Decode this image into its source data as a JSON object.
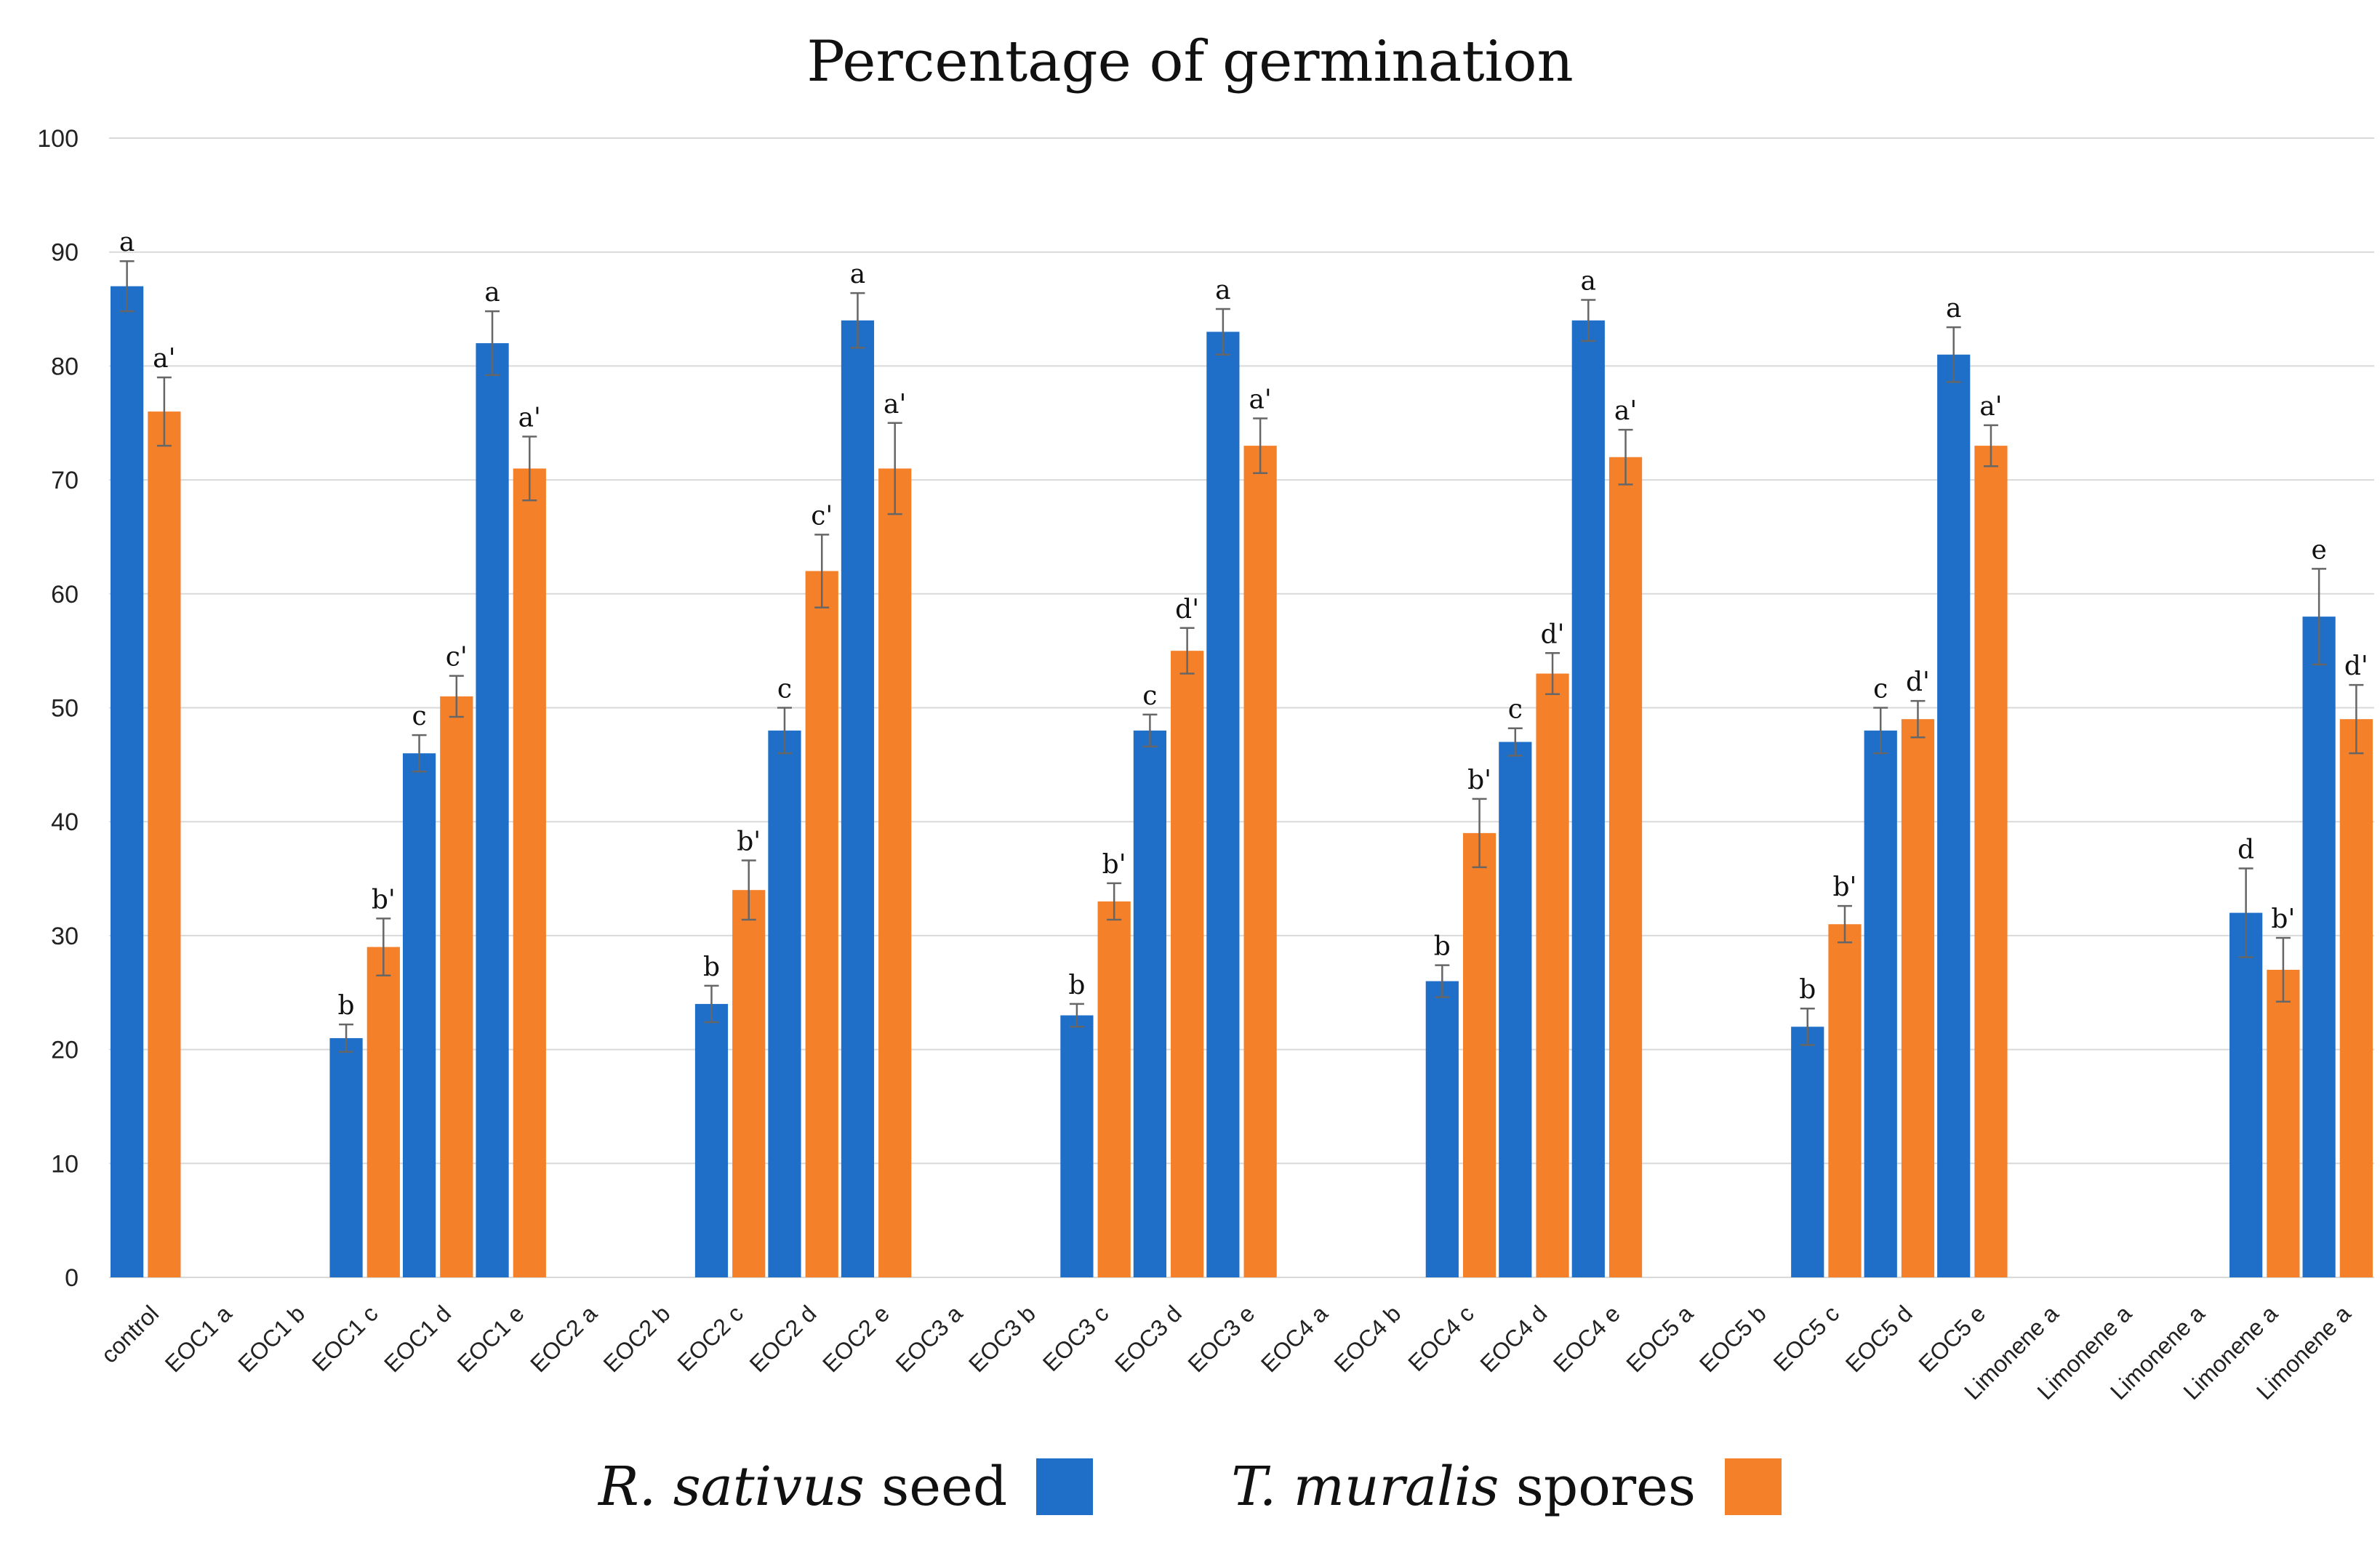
{
  "chart_data": {
    "type": "bar",
    "title": "Percentage of germination",
    "xlabel": "",
    "ylabel": "",
    "ylim": [
      0,
      100
    ],
    "yticks": [
      0,
      10,
      20,
      30,
      40,
      50,
      60,
      70,
      80,
      90,
      100
    ],
    "grid": true,
    "legend_position": "bottom",
    "categories": [
      "control",
      "EOC1 a",
      "EOC1 b",
      "EOC1 c",
      "EOC1 d",
      "EOC1 e",
      "EOC2 a",
      "EOC2 b",
      "EOC2 c",
      "EOC2 d",
      "EOC2 e",
      "EOC3 a",
      "EOC3 b",
      "EOC3 c",
      "EOC3 d",
      "EOC3 e",
      "EOC4 a",
      "EOC4 b",
      "EOC4 c",
      "EOC4 d",
      "EOC4 e",
      "EOC5 a",
      "EOC5 b",
      "EOC5 c",
      "EOC5 d",
      "EOC5 e",
      "Limonene a",
      "Limonene a",
      "Limonene a",
      "Limonene a",
      "Limonene a"
    ],
    "series": [
      {
        "name": "R. sativus seed",
        "name_italic": "R. sativus",
        "name_rest": " seed",
        "color": "#1f6fc9",
        "values": [
          87,
          null,
          null,
          21,
          46,
          82,
          null,
          null,
          24,
          48,
          84,
          null,
          null,
          23,
          48,
          83,
          null,
          null,
          26,
          47,
          84,
          null,
          null,
          22,
          48,
          81,
          null,
          null,
          null,
          32,
          58
        ],
        "errors": [
          2.2,
          null,
          null,
          1.2,
          1.6,
          2.8,
          null,
          null,
          1.6,
          2.0,
          2.4,
          null,
          null,
          1.0,
          1.4,
          2.0,
          null,
          null,
          1.4,
          1.2,
          1.8,
          null,
          null,
          1.6,
          2.0,
          2.4,
          null,
          null,
          null,
          3.9,
          4.2
        ],
        "labels": [
          "a",
          "",
          "",
          "b",
          "c",
          "a",
          "",
          "",
          "b",
          "c",
          "a",
          "",
          "",
          "b",
          "c",
          "a",
          "",
          "",
          "b",
          "c",
          "a",
          "",
          "",
          "b",
          "c",
          "a",
          "",
          "",
          "",
          "d",
          "e"
        ]
      },
      {
        "name": "T. muralis spores",
        "name_italic": "T. muralis",
        "name_rest": " spores",
        "color": "#f5802a",
        "values": [
          76,
          null,
          null,
          29,
          51,
          71,
          null,
          null,
          34,
          62,
          71,
          null,
          null,
          33,
          55,
          73,
          null,
          null,
          39,
          53,
          72,
          null,
          null,
          31,
          49,
          73,
          null,
          null,
          null,
          27,
          49
        ],
        "errors": [
          3.0,
          null,
          null,
          2.5,
          1.8,
          2.8,
          null,
          null,
          2.6,
          3.2,
          4.0,
          null,
          null,
          1.6,
          2.0,
          2.4,
          null,
          null,
          3.0,
          1.8,
          2.4,
          null,
          null,
          1.6,
          1.6,
          1.8,
          null,
          null,
          null,
          2.8,
          3.0
        ],
        "labels": [
          "a'",
          "",
          "",
          "b'",
          "c'",
          "a'",
          "",
          "",
          "b'",
          "c'",
          "a'",
          "",
          "",
          "b'",
          "d'",
          "a'",
          "",
          "",
          "b'",
          "d'",
          "a'",
          "",
          "",
          "b'",
          "d'",
          "a'",
          "",
          "",
          "",
          "b'",
          "d'"
        ]
      }
    ]
  }
}
